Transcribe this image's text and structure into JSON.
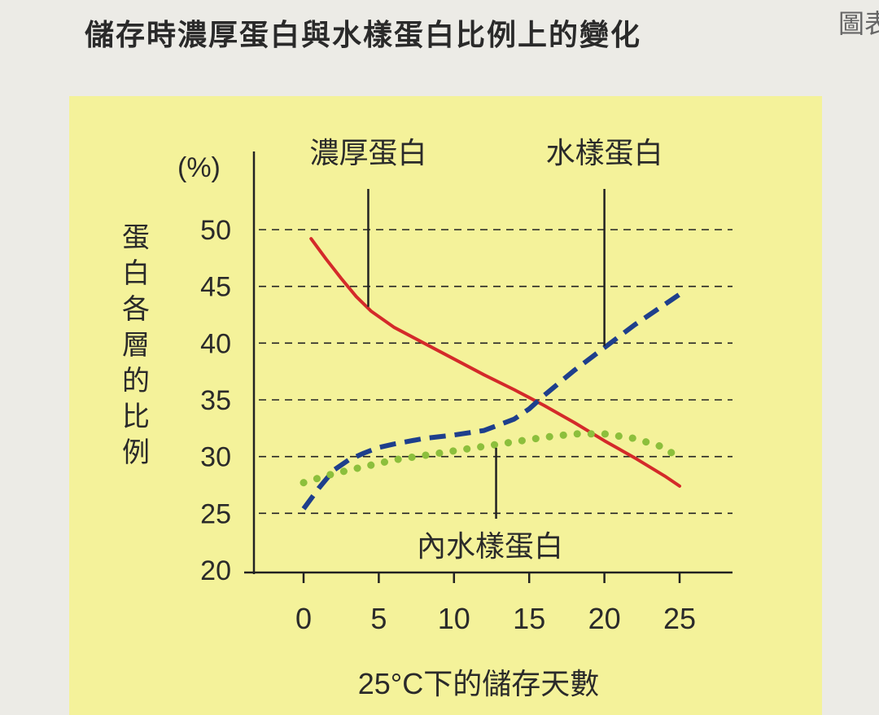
{
  "page": {
    "title": "儲存時濃厚蛋白與水樣蛋白比例上的變化",
    "figure_label": "圖表"
  },
  "chart_data": {
    "type": "line",
    "title": "儲存時濃厚蛋白與水樣蛋白比例上的變化",
    "xlabel": "25°C下的儲存天數",
    "ylabel": "蛋白各層的比例",
    "yunit": "(%)",
    "xlim": [
      0,
      25
    ],
    "ylim": [
      20,
      50
    ],
    "xticks": [
      0,
      5,
      10,
      15,
      20,
      25
    ],
    "yticks": [
      20,
      25,
      30,
      35,
      40,
      45,
      50
    ],
    "grid": "horizontal dashed",
    "series": [
      {
        "name": "濃厚蛋白",
        "style": "solid",
        "color": "#d42a2a",
        "x": [
          0.5,
          1.5,
          2.5,
          3.5,
          4.5,
          6,
          8,
          10,
          12,
          14,
          15,
          16,
          18,
          20,
          22,
          24,
          25
        ],
        "y": [
          49.2,
          47.4,
          45.7,
          44.1,
          42.8,
          41.4,
          40.0,
          38.6,
          37.2,
          35.9,
          35.2,
          34.5,
          33.0,
          31.4,
          29.9,
          28.3,
          27.4
        ]
      },
      {
        "name": "水樣蛋白",
        "style": "dashed",
        "color": "#1e3f8c",
        "x": [
          0,
          1,
          2,
          3,
          4,
          5,
          6,
          8,
          10,
          12,
          14,
          15,
          16,
          18,
          20,
          22,
          24,
          25
        ],
        "y": [
          25.4,
          27.2,
          28.8,
          29.7,
          30.3,
          30.8,
          31.1,
          31.6,
          31.9,
          32.3,
          33.3,
          34.2,
          35.4,
          37.6,
          39.6,
          41.6,
          43.4,
          44.3
        ]
      },
      {
        "name": "內水樣蛋白",
        "style": "dotted",
        "color": "#8cbf3c",
        "x": [
          0,
          1,
          2,
          3,
          4,
          5,
          6,
          8,
          10,
          12,
          14,
          16,
          18,
          20,
          22,
          24,
          25
        ],
        "y": [
          27.7,
          28.1,
          28.5,
          28.8,
          29.1,
          29.4,
          29.7,
          30.1,
          30.5,
          30.9,
          31.3,
          31.7,
          32.0,
          32.0,
          31.6,
          30.8,
          29.8
        ]
      }
    ],
    "annotations": [
      {
        "text": "濃厚蛋白",
        "series": "濃厚蛋白",
        "at_x": 4.3,
        "placement": "above"
      },
      {
        "text": "水樣蛋白",
        "series": "水樣蛋白",
        "at_x": 20,
        "placement": "above"
      },
      {
        "text": "內水樣蛋白",
        "series": "內水樣蛋白",
        "at_x": 12.8,
        "placement": "below"
      }
    ]
  }
}
